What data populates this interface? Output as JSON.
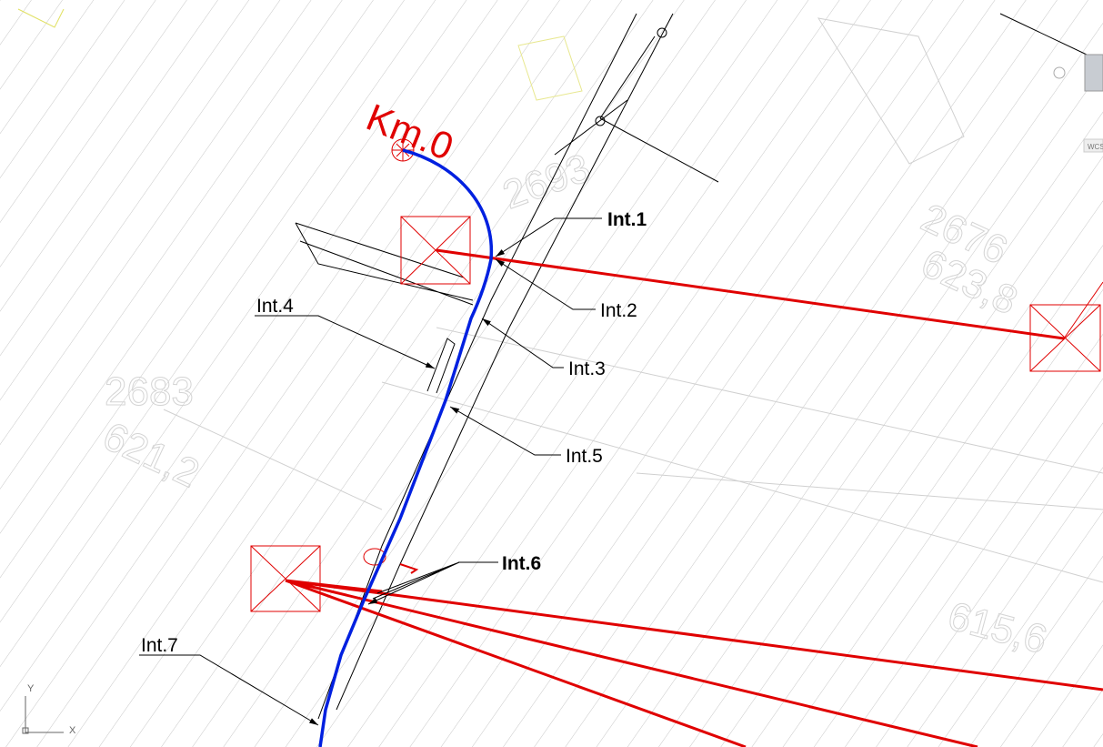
{
  "label_km": "Km.0",
  "intersections": [
    "Int.1",
    "Int.2",
    "Int.3",
    "Int.4",
    "Int.5",
    "Int.6",
    "Int.7"
  ],
  "background_numbers": [
    "2693",
    "2676",
    "623,8",
    "2683",
    "621,2",
    "615,6"
  ],
  "ucs": {
    "x": "X",
    "y": "Y"
  },
  "viewcube": {
    "wcs": "WCS"
  }
}
